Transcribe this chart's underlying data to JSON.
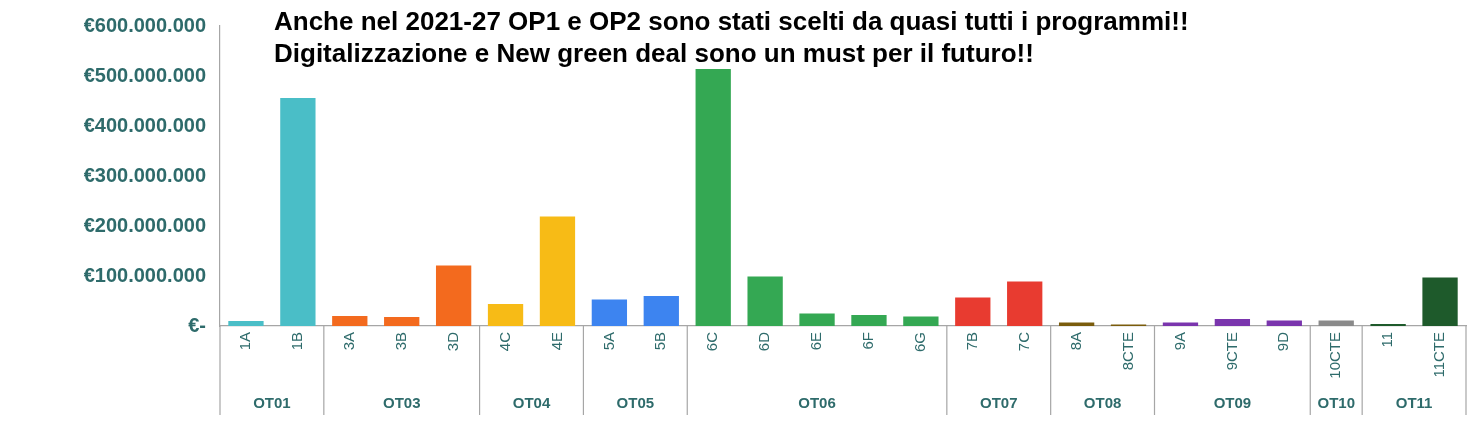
{
  "chart_data": {
    "type": "bar",
    "title": "Anche nel 2021-27 OP1 e OP2 sono stati scelti da quasi tutti i programmi!!\nDigitalizzazione e New green deal sono un must per il futuro!!",
    "categories": [
      "1A",
      "1B",
      "3A",
      "3B",
      "3D",
      "4C",
      "4E",
      "5A",
      "5B",
      "6C",
      "6D",
      "6E",
      "6F",
      "6G",
      "7B",
      "7C",
      "8A",
      "8CTE",
      "9A",
      "9CTE",
      "9D",
      "10CTE",
      "11",
      "11CTE"
    ],
    "values": [
      10000000,
      456000000,
      20000000,
      18000000,
      121000000,
      44000000,
      219000000,
      53000000,
      60000000,
      514000000,
      99000000,
      25000000,
      22000000,
      19000000,
      57000000,
      89000000,
      7000000,
      3000000,
      7000000,
      14000000,
      11000000,
      11000000,
      4000000,
      97000000
    ],
    "colors": [
      "#4abec7",
      "#4abec7",
      "#f36a1e",
      "#f36a1e",
      "#f36a1e",
      "#f7bb16",
      "#f7bb16",
      "#3d84f0",
      "#3d84f0",
      "#34a853",
      "#34a853",
      "#34a853",
      "#34a853",
      "#34a853",
      "#e83b30",
      "#e83b30",
      "#7a5c0c",
      "#7a5c0c",
      "#7a35ad",
      "#7a35ad",
      "#7a35ad",
      "#8a8a8a",
      "#1e5a2b",
      "#1e5a2b"
    ],
    "ylim": [
      0,
      600000000
    ],
    "yticks": [
      {
        "value": 0,
        "label": "€-"
      },
      {
        "value": 100000000,
        "label": "€100.000.000"
      },
      {
        "value": 200000000,
        "label": "€200.000.000"
      },
      {
        "value": 300000000,
        "label": "€300.000.000"
      },
      {
        "value": 400000000,
        "label": "€400.000.000"
      },
      {
        "value": 500000000,
        "label": "€500.000.000"
      },
      {
        "value": 600000000,
        "label": "€600.000.000"
      }
    ],
    "grid": false,
    "legend": false,
    "annotations": [
      "OT01",
      "OT03",
      "OT04",
      "OT05",
      "OT06",
      "OT07",
      "OT08",
      "OT09",
      "OT10",
      "OT11"
    ]
  }
}
